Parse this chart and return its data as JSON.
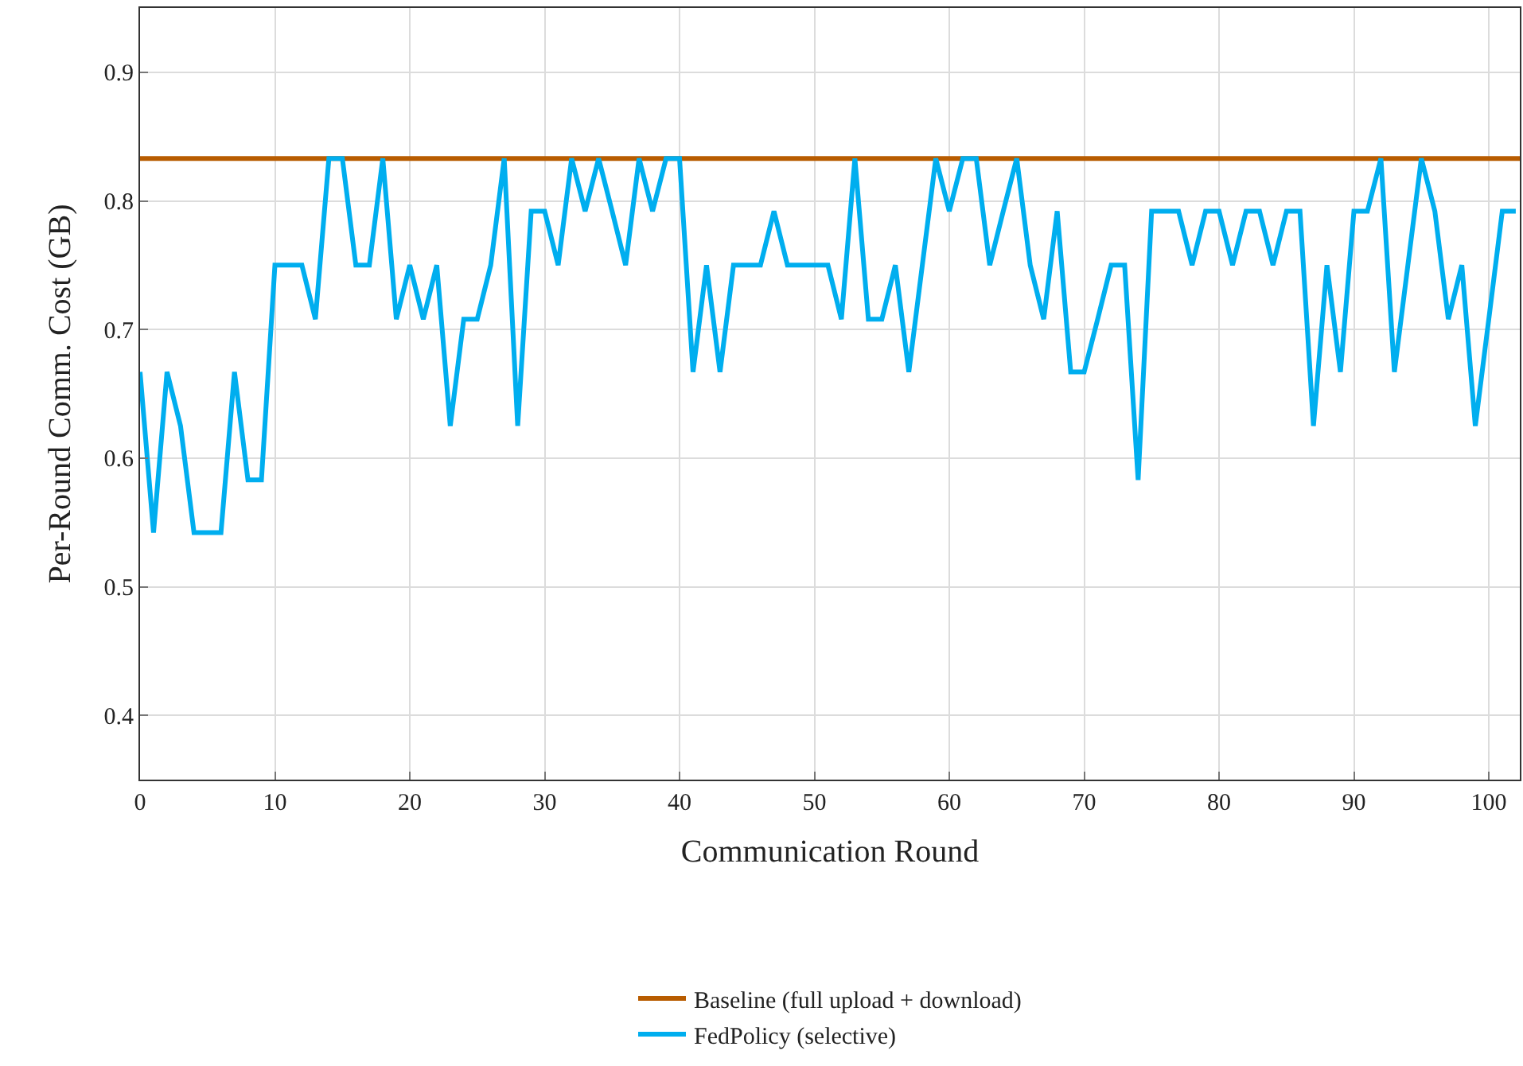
{
  "chart_data": {
    "type": "line",
    "xlabel": "Communication Round",
    "ylabel": "Per-Round Comm. Cost (GB)",
    "xlim": [
      0,
      102.3
    ],
    "ylim": [
      0.35,
      0.95
    ],
    "xticks": [
      0,
      10,
      20,
      30,
      40,
      50,
      60,
      70,
      80,
      90,
      100
    ],
    "yticks": [
      0.4,
      0.5,
      0.6,
      0.7,
      0.8,
      0.9
    ],
    "grid": true,
    "legend": "bottom",
    "marker": "none",
    "line_style": "solid",
    "series": [
      {
        "name": "Baseline (full upload + download)",
        "color": "#b85c00",
        "x": [
          0,
          102.3
        ],
        "values": [
          0.833,
          0.833
        ]
      },
      {
        "name": "FedPolicy (selective)",
        "color": "#00aeef",
        "x": [
          0,
          1,
          2,
          3,
          4,
          5,
          6,
          7,
          8,
          9,
          10,
          11,
          12,
          13,
          14,
          15,
          16,
          17,
          18,
          19,
          20,
          21,
          22,
          23,
          24,
          25,
          26,
          27,
          28,
          29,
          30,
          31,
          32,
          33,
          34,
          35,
          36,
          37,
          38,
          39,
          40,
          41,
          42,
          43,
          44,
          45,
          46,
          47,
          48,
          49,
          50,
          51,
          52,
          53,
          54,
          55,
          56,
          57,
          58,
          59,
          60,
          61,
          62,
          63,
          64,
          65,
          66,
          67,
          68,
          69,
          70,
          71,
          72,
          73,
          74,
          75,
          76,
          77,
          78,
          79,
          80,
          81,
          82,
          83,
          84,
          85,
          86,
          87,
          88,
          89,
          90,
          91,
          92,
          93,
          94,
          95,
          96,
          97,
          98,
          99,
          100,
          101,
          102
        ],
        "values": [
          0.667,
          0.542,
          0.667,
          0.625,
          0.542,
          0.542,
          0.542,
          0.667,
          0.583,
          0.583,
          0.75,
          0.75,
          0.75,
          0.708,
          0.833,
          0.833,
          0.75,
          0.75,
          0.833,
          0.708,
          0.75,
          0.708,
          0.75,
          0.625,
          0.708,
          0.708,
          0.75,
          0.833,
          0.625,
          0.792,
          0.792,
          0.75,
          0.833,
          0.792,
          0.833,
          0.792,
          0.75,
          0.833,
          0.792,
          0.833,
          0.833,
          0.667,
          0.75,
          0.667,
          0.75,
          0.75,
          0.75,
          0.792,
          0.75,
          0.75,
          0.75,
          0.75,
          0.708,
          0.833,
          0.708,
          0.708,
          0.75,
          0.667,
          0.75,
          0.833,
          0.792,
          0.833,
          0.833,
          0.75,
          0.792,
          0.833,
          0.75,
          0.708,
          0.792,
          0.667,
          0.667,
          0.708,
          0.75,
          0.75,
          0.583,
          0.792,
          0.792,
          0.792,
          0.75,
          0.792,
          0.792,
          0.75,
          0.792,
          0.792,
          0.75,
          0.792,
          0.792,
          0.625,
          0.75,
          0.667,
          0.792,
          0.792,
          0.833,
          0.667,
          0.75,
          0.833,
          0.792,
          0.708,
          0.75,
          0.625,
          0.708,
          0.792,
          0.792
        ]
      }
    ]
  }
}
